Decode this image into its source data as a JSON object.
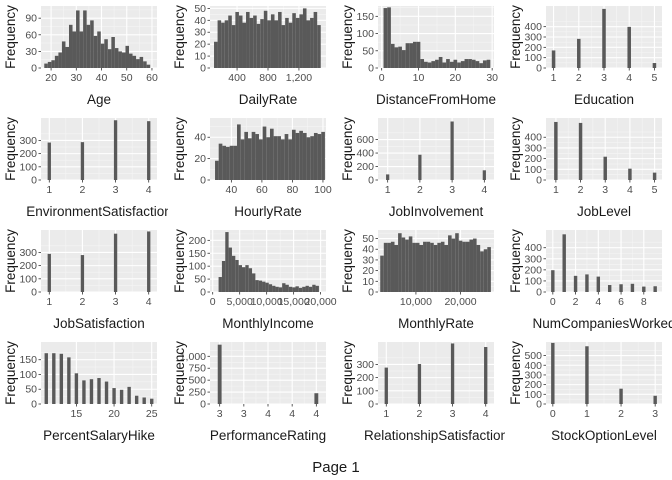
{
  "page_label": "Page 1",
  "colors": {
    "panel_bg": "#EBEBEB",
    "grid_major": "#FFFFFF",
    "grid_minor": "#F5F5F5",
    "bar": "#595959",
    "axis_text": "#4D4D4D",
    "title_text": "#1A1A1A"
  },
  "chart_data": [
    {
      "type": "bar",
      "xlabel": "Age",
      "ylabel": "Frequency",
      "xlim": [
        16,
        62
      ],
      "ylim": [
        0,
        112
      ],
      "xticks": [
        20,
        30,
        40,
        50,
        60
      ],
      "xtick_labels": [
        "20",
        "30",
        "40",
        "50",
        "60"
      ],
      "yticks": [
        0,
        30,
        60,
        90
      ],
      "ytick_labels": [
        "0",
        "30",
        "60",
        "90"
      ],
      "bin_width": 1.4,
      "x": [
        18,
        19.4,
        20.8,
        22.2,
        23.6,
        25,
        26.4,
        27.8,
        29.2,
        30.6,
        32,
        33.4,
        34.8,
        36.2,
        37.6,
        39,
        40.4,
        41.8,
        43.2,
        44.6,
        46,
        47.4,
        48.8,
        50.2,
        51.6,
        53,
        54.4,
        55.8,
        57.2,
        58.6
      ],
      "values": [
        8,
        11,
        14,
        22,
        28,
        48,
        38,
        78,
        66,
        104,
        66,
        104,
        78,
        86,
        58,
        66,
        44,
        52,
        34,
        56,
        36,
        30,
        28,
        40,
        26,
        22,
        16,
        20,
        12,
        6
      ]
    },
    {
      "type": "bar",
      "xlabel": "DailyRate",
      "ylabel": "Frequency",
      "xlim": [
        50,
        1550
      ],
      "ylim": [
        0,
        52
      ],
      "xticks": [
        400,
        800,
        1200
      ],
      "xtick_labels": [
        "400",
        "800",
        "1,200"
      ],
      "yticks": [
        0,
        10,
        20,
        30,
        40,
        50
      ],
      "ytick_labels": [
        "0",
        "10",
        "20",
        "30",
        "40",
        "50"
      ],
      "bin_width": 46,
      "x": [
        125,
        171,
        217,
        263,
        309,
        355,
        401,
        447,
        493,
        539,
        585,
        631,
        677,
        723,
        769,
        815,
        861,
        907,
        953,
        999,
        1045,
        1091,
        1137,
        1183,
        1229,
        1275,
        1321,
        1367,
        1413,
        1459
      ],
      "values": [
        22,
        40,
        38,
        40,
        44,
        36,
        47,
        44,
        38,
        47,
        42,
        44,
        37,
        41,
        48,
        40,
        45,
        40,
        47,
        36,
        42,
        38,
        46,
        42,
        45,
        50,
        40,
        42,
        47,
        36
      ]
    },
    {
      "type": "bar",
      "xlabel": "DistanceFromHome",
      "ylabel": "Frequency",
      "xlim": [
        -1,
        30.5
      ],
      "ylim": [
        0,
        180
      ],
      "xticks": [
        0,
        10,
        20,
        30
      ],
      "xtick_labels": [
        "0",
        "10",
        "20",
        "30"
      ],
      "yticks": [
        0,
        50,
        100,
        150
      ],
      "ytick_labels": [
        "0",
        "50",
        "100",
        "150"
      ],
      "bin_width": 1,
      "x": [
        1,
        2,
        3,
        4,
        5,
        6,
        7,
        8,
        9,
        10,
        11,
        12,
        13,
        14,
        15,
        16,
        17,
        18,
        19,
        20,
        21,
        22,
        23,
        24,
        25,
        26,
        27,
        28,
        29
      ],
      "values": [
        174,
        176,
        70,
        60,
        62,
        52,
        72,
        72,
        76,
        76,
        26,
        18,
        16,
        20,
        24,
        32,
        16,
        26,
        18,
        24,
        16,
        20,
        26,
        26,
        24,
        20,
        14,
        22,
        24
      ]
    },
    {
      "type": "bar",
      "xlabel": "Education",
      "ylabel": "Frequency",
      "xlim": [
        0.7,
        5.3
      ],
      "ylim": [
        0,
        600
      ],
      "xticks": [
        1,
        2,
        3,
        4,
        5
      ],
      "xtick_labels": [
        "1",
        "2",
        "3",
        "4",
        "5"
      ],
      "yticks": [
        0,
        100,
        200,
        300,
        400
      ],
      "ytick_labels": [
        "0",
        "100",
        "200",
        "300",
        "400"
      ],
      "bin_width": 0.14,
      "x": [
        1,
        2,
        3,
        4,
        5
      ],
      "values": [
        170,
        282,
        572,
        398,
        48
      ]
    },
    {
      "type": "bar",
      "xlabel": "EnvironmentSatisfaction",
      "ylabel": "Frequency",
      "xlim": [
        0.75,
        4.25
      ],
      "ylim": [
        0,
        470
      ],
      "xticks": [
        1,
        2,
        3,
        4
      ],
      "xtick_labels": [
        "1",
        "2",
        "3",
        "4"
      ],
      "yticks": [
        0,
        100,
        200,
        300
      ],
      "ytick_labels": [
        "0",
        "100",
        "200",
        "300"
      ],
      "bin_width": 0.1,
      "x": [
        1,
        2,
        3,
        4
      ],
      "values": [
        284,
        287,
        453,
        446
      ]
    },
    {
      "type": "bar",
      "xlabel": "HourlyRate",
      "ylabel": "Frequency",
      "xlim": [
        26,
        102
      ],
      "ylim": [
        0,
        58
      ],
      "xticks": [
        40,
        60,
        80,
        100
      ],
      "xtick_labels": [
        "40",
        "60",
        "80",
        "100"
      ],
      "yticks": [
        0,
        20,
        40
      ],
      "ytick_labels": [
        "0",
        "20",
        "40"
      ],
      "bin_width": 2.4,
      "x": [
        30.5,
        32.9,
        35.3,
        37.7,
        40.1,
        42.5,
        44.9,
        47.3,
        49.7,
        52.1,
        54.5,
        56.9,
        59.3,
        61.7,
        64.1,
        66.5,
        68.9,
        71.3,
        73.7,
        76.1,
        78.5,
        80.9,
        83.3,
        85.7,
        88.1,
        90.5,
        92.9,
        95.3,
        97.7,
        100.1
      ],
      "values": [
        18,
        34,
        32,
        31,
        32,
        32,
        52,
        38,
        45,
        39,
        45,
        43,
        38,
        50,
        40,
        48,
        41,
        41,
        38,
        43,
        38,
        47,
        44,
        46,
        44,
        40,
        41,
        44,
        43,
        45
      ]
    },
    {
      "type": "bar",
      "xlabel": "JobInvolvement",
      "ylabel": "Frequency",
      "xlim": [
        0.7,
        4.3
      ],
      "ylim": [
        0,
        920
      ],
      "xticks": [
        1,
        2,
        3,
        4
      ],
      "xtick_labels": [
        "1",
        "2",
        "3",
        "4"
      ],
      "yticks": [
        0,
        200,
        400,
        600
      ],
      "ytick_labels": [
        "0",
        "200",
        "400",
        "600"
      ],
      "bin_width": 0.1,
      "x": [
        1,
        2,
        3,
        4
      ],
      "values": [
        83,
        375,
        868,
        144
      ]
    },
    {
      "type": "bar",
      "xlabel": "JobLevel",
      "ylabel": "Frequency",
      "xlim": [
        0.6,
        5.3
      ],
      "ylim": [
        0,
        580
      ],
      "xticks": [
        1,
        2,
        3,
        4,
        5
      ],
      "xtick_labels": [
        "1",
        "2",
        "3",
        "4",
        "5"
      ],
      "yticks": [
        0,
        100,
        200,
        300,
        400
      ],
      "ytick_labels": [
        "0",
        "100",
        "200",
        "300",
        "400"
      ],
      "bin_width": 0.14,
      "x": [
        1,
        2,
        3,
        4,
        5
      ],
      "values": [
        543,
        534,
        218,
        106,
        69
      ]
    },
    {
      "type": "bar",
      "xlabel": "JobSatisfaction",
      "ylabel": "Frequency",
      "xlim": [
        0.75,
        4.25
      ],
      "ylim": [
        0,
        470
      ],
      "xticks": [
        1,
        2,
        3,
        4
      ],
      "xtick_labels": [
        "1",
        "2",
        "3",
        "4"
      ],
      "yticks": [
        0,
        100,
        200,
        300
      ],
      "ytick_labels": [
        "0",
        "100",
        "200",
        "300"
      ],
      "bin_width": 0.1,
      "x": [
        1,
        2,
        3,
        4
      ],
      "values": [
        289,
        280,
        442,
        459
      ]
    },
    {
      "type": "bar",
      "xlabel": "MonthlyIncome",
      "ylabel": "Frequency",
      "xlim": [
        -500,
        21000
      ],
      "ylim": [
        0,
        240
      ],
      "xticks": [
        0,
        5000,
        10000,
        15000,
        20000
      ],
      "xtick_labels": [
        "0",
        "5,000",
        "10,000",
        "15,000",
        "20,000"
      ],
      "yticks": [
        0,
        50,
        100,
        150,
        200
      ],
      "ytick_labels": [
        "0",
        "50",
        "100",
        "150",
        "200"
      ],
      "bin_width": 620,
      "x": [
        1400,
        2020,
        2640,
        3260,
        3880,
        4500,
        5120,
        5740,
        6360,
        6980,
        7600,
        8220,
        8840,
        9460,
        10080,
        10700,
        11320,
        11940,
        12560,
        13180,
        13800,
        14420,
        15040,
        15660,
        16280,
        16900,
        17520,
        18140,
        18760,
        19380
      ],
      "values": [
        58,
        120,
        232,
        172,
        140,
        124,
        104,
        96,
        104,
        92,
        72,
        46,
        44,
        40,
        36,
        30,
        24,
        20,
        18,
        34,
        28,
        20,
        18,
        22,
        16,
        20,
        24,
        20,
        28,
        24
      ]
    },
    {
      "type": "bar",
      "xlabel": "MonthlyRate",
      "ylabel": "Frequency",
      "xlim": [
        1500,
        27500
      ],
      "ylim": [
        0,
        58
      ],
      "xticks": [
        10000,
        20000
      ],
      "xtick_labels": [
        "10,000",
        "20,000"
      ],
      "yticks": [
        0,
        10,
        20,
        30,
        40,
        50
      ],
      "ytick_labels": [
        "0",
        "10",
        "20",
        "30",
        "40",
        "50"
      ],
      "bin_width": 800,
      "x": [
        2400,
        3200,
        4000,
        4800,
        5600,
        6400,
        7200,
        8000,
        8800,
        9600,
        10400,
        11200,
        12000,
        12800,
        13600,
        14400,
        15200,
        16000,
        16800,
        17600,
        18400,
        19200,
        20000,
        20800,
        21600,
        22400,
        23200,
        24000,
        24800,
        25600,
        26400
      ],
      "values": [
        34,
        46,
        46,
        47,
        44,
        55,
        51,
        49,
        52,
        46,
        46,
        44,
        47,
        47,
        46,
        44,
        46,
        47,
        44,
        53,
        50,
        55,
        48,
        47,
        47,
        49,
        50,
        44,
        38,
        40,
        42
      ]
    },
    {
      "type": "bar",
      "xlabel": "NumCompaniesWorked",
      "ylabel": "Frequency",
      "xlim": [
        -0.6,
        9.6
      ],
      "ylim": [
        0,
        560
      ],
      "xticks": [
        0,
        2,
        4,
        6,
        8
      ],
      "xtick_labels": [
        "0",
        "2",
        "4",
        "6",
        "8"
      ],
      "yticks": [
        0,
        100,
        200,
        300,
        400
      ],
      "ytick_labels": [
        "0",
        "100",
        "200",
        "300",
        "400"
      ],
      "bin_width": 0.3,
      "x": [
        0,
        1,
        2,
        3,
        4,
        5,
        6,
        7,
        8,
        9
      ],
      "values": [
        197,
        521,
        146,
        159,
        139,
        63,
        70,
        74,
        49,
        52
      ]
    },
    {
      "type": "bar",
      "xlabel": "PercentSalaryHike",
      "ylabel": "Frequency",
      "xlim": [
        10.3,
        25.7
      ],
      "ylim": [
        0,
        210
      ],
      "xticks": [
        15,
        20,
        25
      ],
      "xtick_labels": [
        "15",
        "20",
        "25"
      ],
      "yticks": [
        0,
        50,
        100,
        150
      ],
      "ytick_labels": [
        "0",
        "50",
        "100",
        "150"
      ],
      "bin_width": 0.45,
      "x": [
        11,
        12,
        13,
        14,
        15,
        16,
        17,
        18,
        19,
        20,
        21,
        22,
        23,
        24,
        25
      ],
      "values": [
        172,
        172,
        170,
        158,
        104,
        80,
        84,
        88,
        76,
        54,
        48,
        58,
        28,
        22,
        18
      ]
    },
    {
      "type": "bar",
      "xlabel": "PerformanceRating",
      "ylabel": "Frequency",
      "xlim": [
        2.9,
        4.1
      ],
      "ylim": [
        0,
        1300
      ],
      "xticks": [
        3,
        3.25,
        3.5,
        3.75,
        4
      ],
      "xtick_labels": [
        "3",
        "3",
        "4",
        "4",
        "4"
      ],
      "yticks": [
        0,
        250,
        500,
        750,
        1000
      ],
      "ytick_labels": [
        "0",
        "250",
        "500",
        "750",
        "1,000"
      ],
      "bin_width": 0.04,
      "x": [
        3,
        4
      ],
      "values": [
        1244,
        226
      ]
    },
    {
      "type": "bar",
      "xlabel": "RelationshipSatisfaction",
      "ylabel": "Frequency",
      "xlim": [
        0.75,
        4.25
      ],
      "ylim": [
        0,
        470
      ],
      "xticks": [
        1,
        2,
        3,
        4
      ],
      "xtick_labels": [
        "1",
        "2",
        "3",
        "4"
      ],
      "yticks": [
        0,
        100,
        200,
        300
      ],
      "ytick_labels": [
        "0",
        "100",
        "200",
        "300"
      ],
      "bin_width": 0.1,
      "x": [
        1,
        2,
        3,
        4
      ],
      "values": [
        276,
        303,
        459,
        432
      ]
    },
    {
      "type": "bar",
      "xlabel": "StockOptionLevel",
      "ylabel": "Frequency",
      "xlim": [
        -0.2,
        3.2
      ],
      "ylim": [
        0,
        640
      ],
      "xticks": [
        0,
        1,
        2,
        3
      ],
      "xtick_labels": [
        "0",
        "1",
        "2",
        "3"
      ],
      "yticks": [
        0,
        100,
        200,
        300,
        400,
        500
      ],
      "ytick_labels": [
        "0",
        "100",
        "200",
        "300",
        "400",
        "500"
      ],
      "bin_width": 0.1,
      "x": [
        0,
        1,
        2,
        3
      ],
      "values": [
        631,
        596,
        158,
        85
      ]
    }
  ]
}
